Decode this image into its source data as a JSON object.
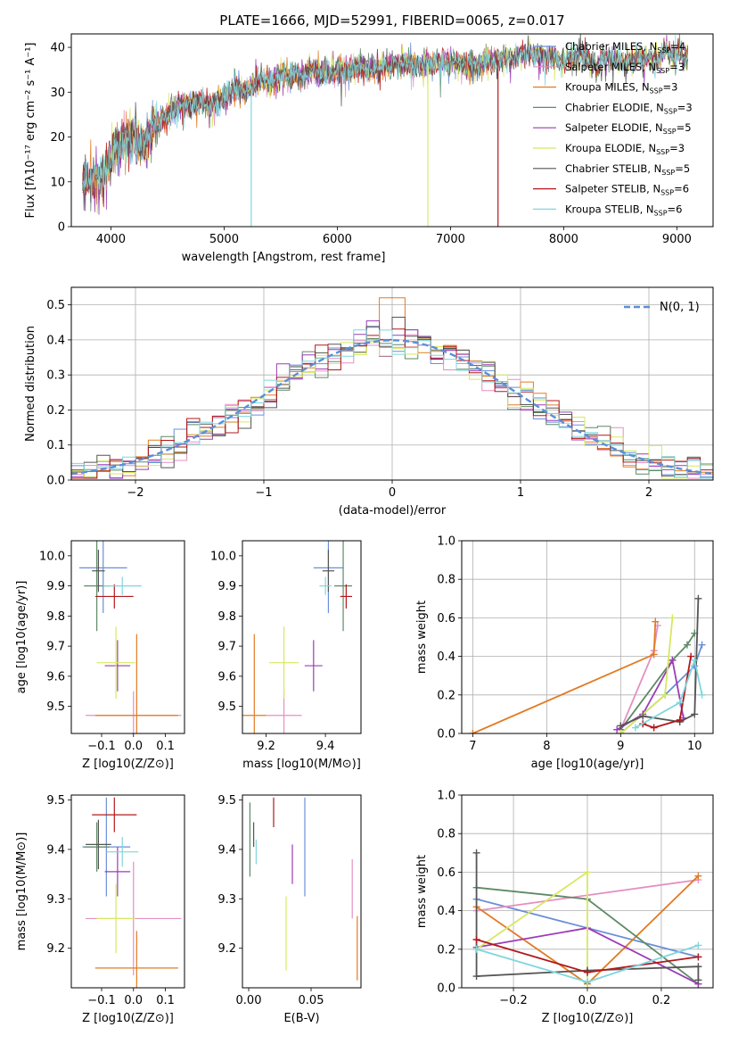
{
  "title": "PLATE=1666, MJD=52991, FIBERID=0065, z=0.017",
  "colors": {
    "Chabrier MILES": "#6a8fd8",
    "Salpeter MILES": "#e58fc3",
    "Kroupa MILES": "#e17b23",
    "Chabrier ELODIE": "#5e8a66",
    "Salpeter ELODIE": "#9b3cb7",
    "Kroupa ELODIE": "#d7e860",
    "Chabrier STELIB": "#555555",
    "Salpeter STELIB": "#b2181b",
    "Kroupa STELIB": "#7fd6dc"
  },
  "chart_data": [
    {
      "id": "spectrum",
      "type": "line",
      "xlabel": "wavelength [Angstrom, rest frame]",
      "ylabel": "Flux [fλ10⁻¹⁷ erg cm⁻² s⁻¹ A⁻¹]",
      "xlim": [
        3650,
        9320
      ],
      "ylim": [
        0,
        43
      ],
      "xticks": [
        4000,
        5000,
        6000,
        7000,
        8000,
        9000
      ],
      "yticks": [
        0,
        10,
        20,
        30,
        40
      ],
      "continuum": [
        [
          3750,
          11
        ],
        [
          3850,
          10
        ],
        [
          3950,
          12
        ],
        [
          4000,
          16
        ],
        [
          4100,
          19
        ],
        [
          4200,
          20
        ],
        [
          4300,
          18
        ],
        [
          4400,
          23
        ],
        [
          4500,
          25
        ],
        [
          4600,
          27
        ],
        [
          4700,
          27
        ],
        [
          4800,
          28
        ],
        [
          4900,
          27
        ],
        [
          5000,
          29
        ],
        [
          5100,
          31
        ],
        [
          5200,
          30
        ],
        [
          5300,
          33
        ],
        [
          5400,
          32
        ],
        [
          5500,
          34
        ],
        [
          5600,
          34
        ],
        [
          5700,
          34
        ],
        [
          5800,
          35
        ],
        [
          5900,
          34
        ],
        [
          6000,
          35
        ],
        [
          6100,
          35
        ],
        [
          6200,
          36
        ],
        [
          6300,
          35
        ],
        [
          6400,
          36
        ],
        [
          6500,
          36
        ],
        [
          6600,
          37
        ],
        [
          6700,
          36
        ],
        [
          6800,
          36
        ],
        [
          6900,
          37
        ],
        [
          7000,
          37
        ],
        [
          7100,
          36
        ],
        [
          7200,
          36
        ],
        [
          7300,
          37
        ],
        [
          7400,
          37
        ],
        [
          7500,
          38
        ],
        [
          7600,
          38
        ],
        [
          7700,
          39
        ],
        [
          7800,
          38
        ],
        [
          7900,
          38
        ],
        [
          8000,
          37
        ],
        [
          8100,
          38
        ],
        [
          8200,
          38
        ],
        [
          8300,
          36
        ],
        [
          8400,
          38
        ],
        [
          8500,
          37
        ],
        [
          8600,
          37
        ],
        [
          8700,
          38
        ],
        [
          8800,
          37
        ],
        [
          8900,
          39
        ],
        [
          9000,
          38
        ],
        [
          9100,
          38
        ]
      ],
      "dips": [
        {
          "x": 5240,
          "to": 0,
          "series": "Kroupa STELIB"
        },
        {
          "x": 6800,
          "to": 0,
          "series": "Kroupa ELODIE"
        },
        {
          "x": 7420,
          "to": 0,
          "series": "Salpeter STELIB"
        },
        {
          "x": 3880,
          "to": 3,
          "series": "Kroupa ELODIE"
        }
      ],
      "legend": [
        {
          "name": "Chabrier MILES",
          "nssp": "4"
        },
        {
          "name": "Salpeter MILES",
          "nssp": "3"
        },
        {
          "name": "Kroupa MILES",
          "nssp": "3"
        },
        {
          "name": "Chabrier ELODIE",
          "nssp": "3"
        },
        {
          "name": "Salpeter ELODIE",
          "nssp": "5"
        },
        {
          "name": "Kroupa ELODIE",
          "nssp": "3"
        },
        {
          "name": "Chabrier STELIB",
          "nssp": "5"
        },
        {
          "name": "Salpeter STELIB",
          "nssp": "6"
        },
        {
          "name": "Kroupa STELIB",
          "nssp": "6"
        }
      ]
    },
    {
      "id": "residuals",
      "type": "line",
      "xlabel": "(data-model)/error",
      "ylabel": "Normed distribution",
      "xlim": [
        -2.5,
        2.5
      ],
      "ylim": [
        0,
        0.55
      ],
      "xticks": [
        -2,
        -1,
        0,
        1,
        2
      ],
      "yticks": [
        0.0,
        0.1,
        0.2,
        0.3,
        0.4,
        0.5
      ],
      "grid": true,
      "legend": "N(0, 1)"
    },
    {
      "id": "age_vs_Z",
      "type": "scatter",
      "xlabel": "Z [log10(Z/Z⊙)]",
      "ylabel": "age [log10(age/yr)]",
      "xlim": [
        -0.195,
        0.16
      ],
      "ylim": [
        9.41,
        10.05
      ],
      "xticks": [
        -0.1,
        0.0,
        0.1
      ],
      "yticks": [
        9.5,
        9.6,
        9.7,
        9.8,
        9.9,
        10.0
      ],
      "points": [
        {
          "series": "Chabrier MILES",
          "x": -0.095,
          "xerr": 0.075,
          "y": 9.96,
          "yerr": 0.15
        },
        {
          "series": "Salpeter MILES",
          "x": 0.0,
          "xerr": 0.15,
          "y": 9.47,
          "yerr": 0.08
        },
        {
          "series": "Kroupa MILES",
          "x": 0.01,
          "xerr": 0.13,
          "y": 9.47,
          "yerr": 0.27
        },
        {
          "series": "Chabrier ELODIE",
          "x": -0.115,
          "xerr": 0.04,
          "y": 9.9,
          "yerr": 0.15
        },
        {
          "series": "Salpeter ELODIE",
          "x": -0.05,
          "xerr": 0.04,
          "y": 9.635,
          "yerr": 0.085
        },
        {
          "series": "Kroupa ELODIE",
          "x": -0.055,
          "xerr": 0.06,
          "y": 9.645,
          "yerr": 0.12
        },
        {
          "series": "Chabrier STELIB",
          "x": -0.11,
          "xerr": 0.02,
          "y": 9.95,
          "yerr": 0.07
        },
        {
          "series": "Salpeter STELIB",
          "x": -0.06,
          "xerr": 0.06,
          "y": 9.865,
          "yerr": 0.04
        },
        {
          "series": "Kroupa STELIB",
          "x": -0.035,
          "xerr": 0.06,
          "y": 9.9,
          "yerr": 0.03
        }
      ]
    },
    {
      "id": "age_vs_mass",
      "type": "scatter",
      "xlabel": "mass [log10(M/M⊙)]",
      "ylabel": "",
      "xlim": [
        9.12,
        9.52
      ],
      "ylim": [
        9.41,
        10.05
      ],
      "xticks": [
        9.2,
        9.4
      ],
      "yticks": [
        9.5,
        9.6,
        9.7,
        9.8,
        9.9,
        10.0
      ],
      "points": [
        {
          "series": "Chabrier MILES",
          "x": 9.41,
          "xerr": 0.05,
          "y": 9.96,
          "yerr": 0.15
        },
        {
          "series": "Salpeter MILES",
          "x": 9.26,
          "xerr": 0.06,
          "y": 9.47,
          "yerr": 0.08
        },
        {
          "series": "Kroupa MILES",
          "x": 9.16,
          "xerr": 0.04,
          "y": 9.47,
          "yerr": 0.27
        },
        {
          "series": "Chabrier ELODIE",
          "x": 9.46,
          "xerr": 0.03,
          "y": 9.9,
          "yerr": 0.15
        },
        {
          "series": "Salpeter ELODIE",
          "x": 9.36,
          "xerr": 0.03,
          "y": 9.635,
          "yerr": 0.085
        },
        {
          "series": "Kroupa ELODIE",
          "x": 9.26,
          "xerr": 0.05,
          "y": 9.645,
          "yerr": 0.12
        },
        {
          "series": "Chabrier STELIB",
          "x": 9.41,
          "xerr": 0.02,
          "y": 9.95,
          "yerr": 0.07
        },
        {
          "series": "Salpeter STELIB",
          "x": 9.47,
          "xerr": 0.02,
          "y": 9.865,
          "yerr": 0.04
        },
        {
          "series": "Kroupa STELIB",
          "x": 9.4,
          "xerr": 0.02,
          "y": 9.9,
          "yerr": 0.03
        }
      ]
    },
    {
      "id": "weight_vs_age",
      "type": "line",
      "xlabel": "age [log10(age/yr)]",
      "ylabel": "mass weight",
      "xlim": [
        6.85,
        10.25
      ],
      "ylim": [
        0,
        1
      ],
      "xticks": [
        7,
        8,
        9,
        10
      ],
      "yticks": [
        0.0,
        0.2,
        0.4,
        0.6,
        0.8,
        1.0
      ],
      "grid": true,
      "series": [
        {
          "name": "Chabrier MILES",
          "x": [
            9.0,
            9.6,
            10.0,
            10.1
          ],
          "y": [
            0.0,
            0.2,
            0.35,
            0.46
          ]
        },
        {
          "name": "Salpeter MILES",
          "x": [
            9.0,
            9.45,
            9.5
          ],
          "y": [
            0.02,
            0.43,
            0.56
          ]
        },
        {
          "name": "Kroupa MILES",
          "x": [
            7.0,
            9.45,
            9.47
          ],
          "y": [
            0.0,
            0.41,
            0.58
          ]
        },
        {
          "name": "Chabrier ELODIE",
          "x": [
            9.0,
            9.7,
            9.9,
            10.0
          ],
          "y": [
            0.02,
            0.38,
            0.46,
            0.52
          ]
        },
        {
          "name": "Salpeter ELODIE",
          "x": [
            8.95,
            9.3,
            9.7,
            9.85
          ],
          "y": [
            0.02,
            0.1,
            0.38,
            0.08
          ]
        },
        {
          "name": "Kroupa ELODIE",
          "x": [
            9.0,
            9.6,
            9.7
          ],
          "y": [
            0.0,
            0.2,
            0.6
          ]
        },
        {
          "name": "Chabrier STELIB",
          "x": [
            9.0,
            9.3,
            9.8,
            10.0,
            10.05
          ],
          "y": [
            0.04,
            0.09,
            0.06,
            0.1,
            0.7
          ]
        },
        {
          "name": "Salpeter STELIB",
          "x": [
            9.3,
            9.45,
            9.8,
            9.95
          ],
          "y": [
            0.05,
            0.03,
            0.07,
            0.4
          ]
        },
        {
          "name": "Kroupa STELIB",
          "x": [
            9.2,
            9.8,
            10.0,
            10.1
          ],
          "y": [
            0.03,
            0.16,
            0.38,
            0.2
          ]
        }
      ]
    },
    {
      "id": "mass_vs_Z",
      "type": "scatter",
      "xlabel": "Z [log10(Z/Z⊙)]",
      "ylabel": "mass [log10(M/M⊙)]",
      "xlim": [
        -0.195,
        0.16
      ],
      "ylim": [
        9.12,
        9.51
      ],
      "xticks": [
        -0.1,
        0.0,
        0.1
      ],
      "yticks": [
        9.2,
        9.3,
        9.4,
        9.5
      ],
      "points": [
        {
          "series": "Chabrier MILES",
          "x": -0.085,
          "xerr": 0.075,
          "y": 9.405,
          "yerr": 0.1
        },
        {
          "series": "Salpeter MILES",
          "x": 0.0,
          "xerr": 0.15,
          "y": 9.26,
          "yerr": 0.115
        },
        {
          "series": "Kroupa MILES",
          "x": 0.01,
          "xerr": 0.13,
          "y": 9.16,
          "yerr": 0.075
        },
        {
          "series": "Chabrier ELODIE",
          "x": -0.115,
          "xerr": 0.04,
          "y": 9.405,
          "yerr": 0.05
        },
        {
          "series": "Salpeter ELODIE",
          "x": -0.05,
          "xerr": 0.04,
          "y": 9.355,
          "yerr": 0.05
        },
        {
          "series": "Kroupa ELODIE",
          "x": -0.055,
          "xerr": 0.06,
          "y": 9.26,
          "yerr": 0.07
        },
        {
          "series": "Chabrier STELIB",
          "x": -0.11,
          "xerr": 0.04,
          "y": 9.41,
          "yerr": 0.05
        },
        {
          "series": "Salpeter STELIB",
          "x": -0.06,
          "xerr": 0.07,
          "y": 9.47,
          "yerr": 0.035
        },
        {
          "series": "Kroupa STELIB",
          "x": -0.035,
          "xerr": 0.05,
          "y": 9.395,
          "yerr": 0.03
        }
      ]
    },
    {
      "id": "mass_vs_ebv",
      "type": "scatter",
      "xlabel": "E(B-V)",
      "ylabel": "",
      "xlim": [
        -0.005,
        0.09
      ],
      "ylim": [
        9.12,
        9.51
      ],
      "xticks": [
        0.0,
        0.05
      ],
      "yticks": [
        9.2,
        9.3,
        9.4,
        9.5
      ],
      "points": [
        {
          "series": "Chabrier MILES",
          "x": 0.045,
          "y": 9.405,
          "yerr": 0.1
        },
        {
          "series": "Salpeter MILES",
          "x": 0.083,
          "y": 9.32,
          "yerr": 0.06
        },
        {
          "series": "Kroupa MILES",
          "x": 0.087,
          "y": 9.2,
          "yerr": 0.065
        },
        {
          "series": "Chabrier ELODIE",
          "x": 0.001,
          "y": 9.42,
          "yerr": 0.075
        },
        {
          "series": "Salpeter ELODIE",
          "x": 0.035,
          "y": 9.37,
          "yerr": 0.04
        },
        {
          "series": "Kroupa ELODIE",
          "x": 0.03,
          "y": 9.23,
          "yerr": 0.075
        },
        {
          "series": "Chabrier STELIB",
          "x": 0.004,
          "y": 9.43,
          "yerr": 0.025
        },
        {
          "series": "Salpeter STELIB",
          "x": 0.02,
          "y": 9.475,
          "yerr": 0.03
        },
        {
          "series": "Kroupa STELIB",
          "x": 0.006,
          "y": 9.395,
          "yerr": 0.025
        }
      ]
    },
    {
      "id": "weight_vs_Z",
      "type": "line",
      "xlabel": "Z [log10(Z/Z⊙)]",
      "ylabel": "mass weight",
      "xlim": [
        -0.34,
        0.34
      ],
      "ylim": [
        0,
        1
      ],
      "xticks": [
        -0.2,
        0.0,
        0.2
      ],
      "yticks": [
        0.0,
        0.2,
        0.4,
        0.6,
        0.8,
        1.0
      ],
      "grid": true,
      "series": [
        {
          "name": "Chabrier MILES",
          "x": [
            -0.3,
            0.3
          ],
          "y": [
            0.46,
            0.16
          ]
        },
        {
          "name": "Salpeter MILES",
          "x": [
            -0.3,
            0.3
          ],
          "y": [
            0.4,
            0.56
          ]
        },
        {
          "name": "Kroupa MILES",
          "x": [
            -0.3,
            0.0,
            0.3
          ],
          "y": [
            0.42,
            0.02,
            0.58
          ]
        },
        {
          "name": "Chabrier ELODIE",
          "x": [
            -0.3,
            0.0,
            0.3
          ],
          "y": [
            0.52,
            0.46,
            0.02
          ]
        },
        {
          "name": "Salpeter ELODIE",
          "x": [
            -0.3,
            0.0,
            0.3
          ],
          "y": [
            0.21,
            0.31,
            0.02
          ]
        },
        {
          "name": "Kroupa ELODIE",
          "x": [
            -0.3,
            0.0,
            0.0
          ],
          "y": [
            0.2,
            0.6,
            0.0
          ]
        },
        {
          "name": "Chabrier STELIB",
          "x": [
            -0.3,
            -0.3,
            0.0,
            0.3,
            0.3
          ],
          "y": [
            0.7,
            0.06,
            0.09,
            0.11,
            0.04
          ]
        },
        {
          "name": "Salpeter STELIB",
          "x": [
            -0.3,
            0.0,
            0.3
          ],
          "y": [
            0.25,
            0.08,
            0.16
          ]
        },
        {
          "name": "Kroupa STELIB",
          "x": [
            -0.3,
            0.0,
            0.3
          ],
          "y": [
            0.2,
            0.03,
            0.22
          ]
        }
      ]
    }
  ]
}
